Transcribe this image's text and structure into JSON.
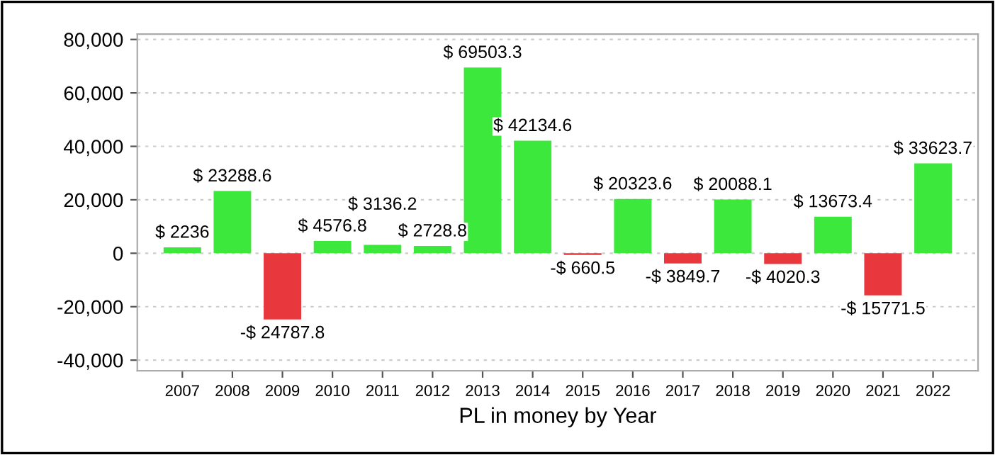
{
  "chart_data": {
    "type": "bar",
    "xlabel": "PL in money by Year",
    "categories": [
      "2007",
      "2008",
      "2009",
      "2010",
      "2011",
      "2012",
      "2013",
      "2014",
      "2015",
      "2016",
      "2017",
      "2018",
      "2019",
      "2020",
      "2021",
      "2022"
    ],
    "values": [
      2236,
      23288.6,
      -24787.8,
      4576.8,
      3136.2,
      2728.8,
      69503.3,
      42134.6,
      -660.5,
      20323.6,
      -3849.7,
      20088.1,
      -4020.3,
      13673.4,
      -15771.5,
      33623.7
    ],
    "colors": [
      "#3de83d",
      "#3de83d",
      "#e8383d",
      "#3de83d",
      "#3de83d",
      "#3de83d",
      "#3de83d",
      "#3de83d",
      "#e8383d",
      "#3de83d",
      "#e8383d",
      "#3de83d",
      "#e8383d",
      "#3de83d",
      "#e8383d",
      "#3de83d"
    ],
    "value_labels": [
      "$ 2236",
      "$ 23288.6",
      "-$ 24787.8",
      "$ 4576.8",
      "$ 3136.2",
      "$ 2728.8",
      "$ 69503.3",
      "$ 42134.6",
      "-$ 660.5",
      "$ 20323.6",
      "-$ 3849.7",
      "$ 20088.1",
      "-$ 4020.3",
      "$ 13673.4",
      "-$ 15771.5",
      "$ 33623.7"
    ],
    "ylim": [
      -44000,
      82000
    ],
    "yticks": [
      {
        "value": -40000,
        "label": "-40,000"
      },
      {
        "value": -20000,
        "label": "-20,000"
      },
      0,
      {
        "value": 20000,
        "label": "20,000"
      },
      {
        "value": 40000,
        "label": "40,000"
      },
      {
        "value": 60000,
        "label": "60,000"
      },
      {
        "value": 80000,
        "label": "80,000"
      }
    ],
    "grid": "y"
  }
}
